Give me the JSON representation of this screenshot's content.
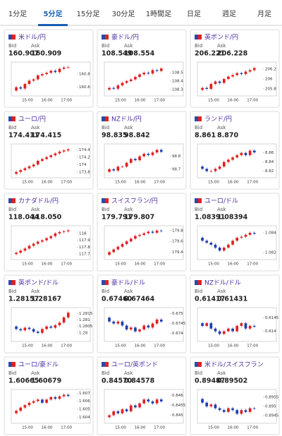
{
  "tabs": [
    "1分足",
    "5分足",
    "15分足",
    "30分足",
    "1時間足",
    "日足",
    "週足",
    "月足"
  ],
  "active_tab": 1,
  "cards": [
    {
      "pair": "米ドル/円",
      "bid_label": "Bid",
      "ask_label": "Ask",
      "bid": "160.907",
      "ask": "160.909",
      "chart": {
        "ylim": [
          160.5,
          160.95
        ],
        "yticks": [
          160.8,
          160.6
        ],
        "xticks": [
          "15:00",
          "16:00",
          "17:00"
        ],
        "close": [
          160.55,
          160.6,
          160.58,
          160.65,
          160.7,
          160.72,
          160.78,
          160.8,
          160.82,
          160.85,
          160.83,
          160.88,
          160.9,
          160.907
        ]
      }
    },
    {
      "pair": "豪ドル/円",
      "bid_label": "Bid",
      "ask_label": "Ask",
      "bid": "108.549",
      "ask": "108.554",
      "chart": {
        "ylim": [
          108.25,
          108.6
        ],
        "yticks": [
          108.5,
          108.4,
          108.3
        ],
        "xticks": [
          "15:00",
          "16:00",
          "17:00"
        ],
        "close": [
          108.3,
          108.32,
          108.31,
          108.35,
          108.38,
          108.4,
          108.42,
          108.45,
          108.48,
          108.5,
          108.49,
          108.53,
          108.52,
          108.549
        ]
      }
    },
    {
      "pair": "英ポンド/円",
      "bid_label": "Bid",
      "ask_label": "Ask",
      "bid": "206.221",
      "ask": "206.228",
      "chart": {
        "ylim": [
          205.7,
          206.3
        ],
        "yticks": [
          206.2,
          206,
          205.8
        ],
        "xticks": [
          "15:00",
          "16:00",
          "17:00"
        ],
        "close": [
          205.78,
          205.82,
          205.8,
          205.9,
          205.95,
          205.92,
          206.0,
          206.05,
          206.08,
          206.12,
          206.1,
          206.15,
          206.18,
          206.221
        ]
      }
    },
    {
      "pair": "ユーロ/円",
      "bid_label": "Bid",
      "ask_label": "Ask",
      "bid": "174.411",
      "ask": "174.415",
      "chart": {
        "ylim": [
          173.7,
          174.5
        ],
        "yticks": [
          174.4,
          174.2,
          174,
          173.8
        ],
        "xticks": [
          "15:00",
          "16:00",
          "17:00"
        ],
        "close": [
          173.75,
          173.8,
          173.85,
          173.9,
          173.95,
          174.0,
          174.1,
          174.15,
          174.2,
          174.25,
          174.3,
          174.35,
          174.38,
          174.411
        ]
      }
    },
    {
      "pair": "NZドル/円",
      "bid_label": "Bid",
      "ask_label": "Ask",
      "bid": "98.835",
      "ask": "98.842",
      "chart": {
        "ylim": [
          98.65,
          98.88
        ],
        "yticks": [
          98.8,
          98.7
        ],
        "xticks": [
          "15:00",
          "16:00",
          "17:00"
        ],
        "close": [
          98.68,
          98.7,
          98.69,
          98.72,
          98.72,
          98.75,
          98.78,
          98.77,
          98.8,
          98.82,
          98.81,
          98.83,
          98.85,
          98.835
        ]
      }
    },
    {
      "pair": "ランド/円",
      "bid_label": "Bid",
      "ask_label": "Ask",
      "bid": "8.861",
      "ask": "8.870",
      "chart": {
        "ylim": [
          8.81,
          8.875
        ],
        "yticks": [
          8.86,
          8.84,
          8.82
        ],
        "xticks": [
          "15:00",
          "16:00",
          "17:00"
        ],
        "close": [
          8.83,
          8.825,
          8.82,
          8.82,
          8.825,
          8.83,
          8.84,
          8.845,
          8.85,
          8.855,
          8.86,
          8.855,
          8.865,
          8.861
        ]
      }
    },
    {
      "pair": "カナダドル/円",
      "bid_label": "Bid",
      "ask_label": "Ask",
      "bid": "118.044",
      "ask": "118.050",
      "chart": {
        "ylim": [
          117.65,
          118.08
        ],
        "yticks": [
          118,
          117.9,
          117.8,
          117.7
        ],
        "xticks": [
          "15:00",
          "16:00",
          "17:00"
        ],
        "close": [
          117.7,
          117.72,
          117.75,
          117.78,
          117.82,
          117.85,
          117.88,
          117.9,
          117.93,
          117.96,
          118.0,
          118.02,
          118.03,
          118.044
        ]
      }
    },
    {
      "pair": "スイスフラン/円",
      "bid_label": "Bid",
      "ask_label": "Ask",
      "bid": "179.791",
      "ask": "179.807",
      "chart": {
        "ylim": [
          179.3,
          179.85
        ],
        "yticks": [
          179.8,
          179.6,
          179.4
        ],
        "xticks": [
          "15:00",
          "16:00",
          "17:00"
        ],
        "close": [
          179.35,
          179.4,
          179.45,
          179.5,
          179.55,
          179.6,
          179.65,
          179.7,
          179.72,
          179.75,
          179.78,
          179.76,
          179.8,
          179.791
        ]
      }
    },
    {
      "pair": "ユーロ/ドル",
      "bid_label": "Bid",
      "ask_label": "Ask",
      "bid": "1.08391",
      "ask": "1.08394",
      "chart": {
        "ylim": [
          1.0815,
          1.0845
        ],
        "yticks": [
          1.084,
          1.082
        ],
        "xticks": [
          "15:00",
          "16:00",
          "17:00"
        ],
        "close": [
          1.0835,
          1.0832,
          1.083,
          1.0828,
          1.0825,
          1.0822,
          1.0825,
          1.0828,
          1.0832,
          1.0835,
          1.0836,
          1.0838,
          1.084,
          1.08391
        ]
      }
    },
    {
      "pair": "英ポンド/ドル",
      "bid_label": "Bid",
      "ask_label": "Ask",
      "bid": "1.28157",
      "ask": "1.28167",
      "chart": {
        "ylim": [
          1.2795,
          1.2818
        ],
        "yticks": [
          1.2815,
          1.281,
          1.2805,
          1.28
        ],
        "xticks": [
          "15:00",
          "16:00",
          "17:00"
        ],
        "close": [
          1.2805,
          1.2803,
          1.2802,
          1.2804,
          1.2803,
          1.2801,
          1.28,
          1.2803,
          1.2805,
          1.2804,
          1.2806,
          1.2808,
          1.2812,
          1.28157
        ]
      }
    },
    {
      "pair": "豪ドル/ドル",
      "bid_label": "Bid",
      "ask_label": "Ask",
      "bid": "0.67460",
      "ask": "0.67464",
      "chart": {
        "ylim": [
          0.6737,
          0.6752
        ],
        "yticks": [
          0.675,
          0.6745,
          0.674
        ],
        "xticks": [
          "15:00",
          "16:00",
          "17:00"
        ],
        "close": [
          0.6748,
          0.6746,
          0.6745,
          0.6746,
          0.6744,
          0.6742,
          0.6743,
          0.6741,
          0.6742,
          0.6744,
          0.6743,
          0.6745,
          0.6747,
          0.6746
        ]
      }
    },
    {
      "pair": "NZドル/ドル",
      "bid_label": "Bid",
      "ask_label": "Ask",
      "bid": "0.61417",
      "ask": "0.61431",
      "chart": {
        "ylim": [
          0.6137,
          0.6148
        ],
        "yticks": [
          0.6145,
          0.614
        ],
        "xticks": [
          "15:00",
          "16:00",
          "17:00"
        ],
        "close": [
          0.6143,
          0.6142,
          0.6143,
          0.6141,
          0.614,
          0.6139,
          0.614,
          0.6141,
          0.614,
          0.6142,
          0.6143,
          0.6141,
          0.6142,
          0.61417
        ]
      }
    },
    {
      "pair": "ユーロ/豪ドル",
      "bid_label": "Bid",
      "ask_label": "Ask",
      "bid": "1.60665",
      "ask": "1.60679",
      "chart": {
        "ylim": [
          1.6035,
          1.6072
        ],
        "yticks": [
          1.607,
          1.606,
          1.605,
          1.604
        ],
        "xticks": [
          "15:00",
          "16:00",
          "17:00"
        ],
        "close": [
          1.6045,
          1.6048,
          1.6052,
          1.6055,
          1.6058,
          1.606,
          1.6062,
          1.6058,
          1.6062,
          1.6065,
          1.6063,
          1.6066,
          1.6068,
          1.60665
        ]
      }
    },
    {
      "pair": "ユーロ/英ポンド",
      "bid_label": "Bid",
      "ask_label": "Ask",
      "bid": "0.84570",
      "ask": "0.84578",
      "chart": {
        "ylim": [
          0.8447,
          0.8462
        ],
        "yticks": [
          0.846,
          0.8455,
          0.845
        ],
        "xticks": [
          "15:00",
          "16:00",
          "17:00"
        ],
        "close": [
          0.8449,
          0.845,
          0.8452,
          0.8451,
          0.8453,
          0.8452,
          0.8455,
          0.8454,
          0.8456,
          0.8458,
          0.8457,
          0.8456,
          0.8458,
          0.8457
        ]
      }
    },
    {
      "pair": "米ドル/スイスフラン",
      "bid_label": "Bid",
      "ask_label": "Ask",
      "bid": "0.89487",
      "ask": "0.89502",
      "chart": {
        "ylim": [
          0.8942,
          0.8958
        ],
        "yticks": [
          0.8955,
          0.895,
          0.8945
        ],
        "xticks": [
          "15:00",
          "16:00",
          "17:00"
        ],
        "close": [
          0.8954,
          0.8952,
          0.895,
          0.8951,
          0.8949,
          0.8948,
          0.8947,
          0.8949,
          0.8948,
          0.8946,
          0.8948,
          0.8947,
          0.8949,
          0.89487
        ]
      }
    }
  ]
}
